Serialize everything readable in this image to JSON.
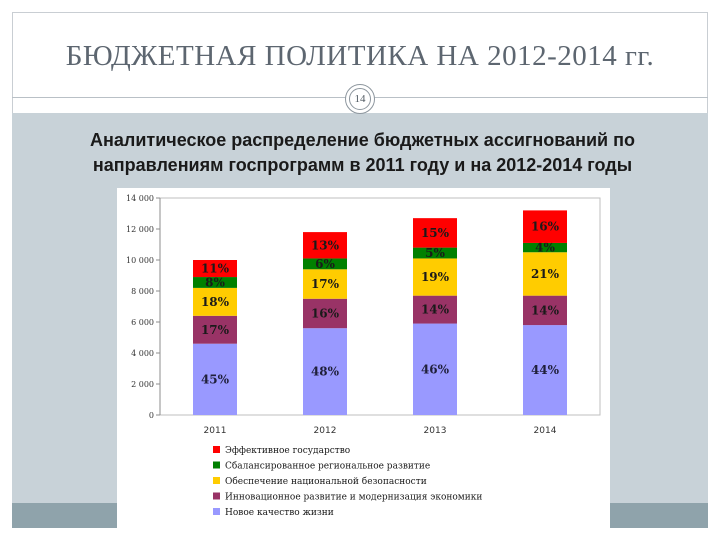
{
  "slide": {
    "title": "БЮДЖЕТНАЯ ПОЛИТИКА НА 2012-2014 гг.",
    "page_number": "14",
    "subtitle_line1": "Аналитическое распределение бюджетных ассигнований по",
    "subtitle_line2": "направлениям госпрограмм в 2011 году и на 2012-2014 годы"
  },
  "colors": {
    "background": "#ffffff",
    "panel": "#c8d2d8",
    "footer": "#8fa3ab"
  },
  "chart_data": {
    "type": "bar",
    "stacked": true,
    "categories": [
      "2011",
      "2012",
      "2013",
      "2014"
    ],
    "ylim": [
      0,
      14000
    ],
    "yticks": [
      0,
      2000,
      4000,
      6000,
      8000,
      10000,
      12000,
      14000
    ],
    "ytick_labels": [
      "0",
      "2 000",
      "4 000",
      "6 000",
      "8 000",
      "10 000",
      "12 000",
      "14 000"
    ],
    "grid": false,
    "legend_position": "bottom",
    "series": [
      {
        "name": "Новое качество жизни",
        "color": "#9999ff",
        "values": [
          4600,
          5600,
          5900,
          5800
        ],
        "labels": [
          "45%",
          "48%",
          "46%",
          "44%"
        ]
      },
      {
        "name": "Инновационное развитие и модернизация экономики",
        "color": "#993366",
        "values": [
          1800,
          1900,
          1800,
          1900
        ],
        "labels": [
          "17%",
          "16%",
          "14%",
          "14%"
        ]
      },
      {
        "name": "Обеспечение национальной безопасности",
        "color": "#ffcc00",
        "values": [
          1800,
          1900,
          2400,
          2800
        ],
        "labels": [
          "18%",
          "17%",
          "19%",
          "21%"
        ]
      },
      {
        "name": "Сбалансированное региональное развитие",
        "color": "#008000",
        "values": [
          700,
          700,
          700,
          600
        ],
        "labels": [
          "8%",
          "6%",
          "5%",
          "4%"
        ]
      },
      {
        "name": "Эффективное государство",
        "color": "#ff0000",
        "values": [
          1100,
          1700,
          1900,
          2100
        ],
        "labels": [
          "11%",
          "13%",
          "15%",
          "16%"
        ]
      }
    ]
  }
}
